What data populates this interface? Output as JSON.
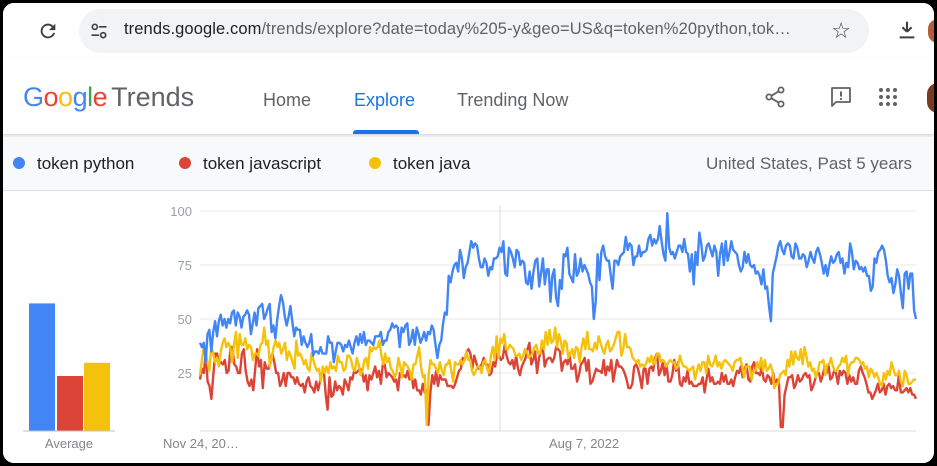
{
  "browser": {
    "url_host": "trends.google.com",
    "url_path": "/trends/explore?date=today%205-y&geo=US&q=token%20python,tok…",
    "icons": [
      "reload-icon",
      "site-settings-icon",
      "bookmark-star-icon",
      "download-icon"
    ]
  },
  "header": {
    "logo_google": [
      "G",
      "o",
      "o",
      "g",
      "l",
      "e"
    ],
    "logo_colors": [
      "#4285F4",
      "#EA4335",
      "#FBBC05",
      "#4285F4",
      "#34A853",
      "#EA4335"
    ],
    "logo_trends": "Trends",
    "nav": [
      "Home",
      "Explore",
      "Trending Now"
    ],
    "active_tab": "Explore",
    "icons": [
      "share-icon",
      "feedback-icon",
      "apps-grid-icon"
    ]
  },
  "legend": {
    "items": [
      {
        "label": "token python",
        "color": "#4285F4"
      },
      {
        "label": "token javascript",
        "color": "#DB4437"
      },
      {
        "label": "token java",
        "color": "#F4C20D"
      }
    ],
    "region": "United States, Past 5 years"
  },
  "chart_data": {
    "type": "line",
    "y_ticks": [
      "100",
      "75",
      "50",
      "25"
    ],
    "ylim": [
      0,
      100
    ],
    "x_tick_labels": [
      "Nov 24, 20…",
      "Aug 7, 2022"
    ],
    "bar_label": "Average",
    "averages": [
      58,
      25,
      31
    ],
    "grid": true,
    "series": [
      {
        "name": "token python",
        "color": "#4285F4",
        "values": [
          39,
          37,
          39,
          30,
          43,
          45,
          35,
          44,
          49,
          42,
          49,
          52,
          47,
          50,
          46,
          50,
          48,
          53,
          54,
          47,
          53,
          51,
          46,
          51,
          52,
          54,
          52,
          43,
          48,
          53,
          47,
          55,
          56,
          57,
          50,
          52,
          55,
          57,
          44,
          47,
          41,
          50,
          56,
          61,
          58,
          51,
          47,
          51,
          56,
          49,
          42,
          46,
          45,
          45,
          38,
          42,
          39,
          37,
          39,
          43,
          33,
          35,
          35,
          34,
          37,
          34,
          34,
          34,
          42,
          39,
          39,
          30,
          35,
          39,
          39,
          38,
          35,
          38,
          37,
          40,
          37,
          34,
          39,
          42,
          38,
          43,
          39,
          44,
          38,
          40,
          40,
          39,
          38,
          42,
          42,
          42,
          44,
          38,
          40,
          40,
          44,
          45,
          48,
          46,
          47,
          46,
          37,
          46,
          44,
          47,
          48,
          38,
          40,
          45,
          38,
          46,
          43,
          39,
          41,
          44,
          40,
          44,
          43,
          47,
          45,
          38,
          32,
          38,
          40,
          48,
          53,
          52,
          70,
          67,
          72,
          75,
          76,
          72,
          82,
          78,
          69,
          74,
          76,
          81,
          86,
          83,
          85,
          84,
          78,
          74,
          74,
          78,
          76,
          70,
          74,
          73,
          78,
          78,
          79,
          83,
          81,
          86,
          71,
          70,
          83,
          81,
          78,
          74,
          82,
          81,
          75,
          77,
          76,
          67,
          66,
          72,
          64,
          72,
          77,
          78,
          65,
          71,
          78,
          66,
          73,
          73,
          58,
          70,
          73,
          60,
          56,
          68,
          64,
          80,
          79,
          83,
          71,
          69,
          67,
          80,
          70,
          72,
          78,
          72,
          75,
          73,
          71,
          67,
          65,
          50,
          58,
          80,
          68,
          81,
          84,
          79,
          77,
          77,
          70,
          64,
          77,
          77,
          75,
          79,
          80,
          81,
          88,
          82,
          85,
          84,
          75,
          79,
          79,
          84,
          79,
          81,
          81,
          82,
          87,
          89,
          84,
          87,
          85,
          87,
          93,
          86,
          80,
          77,
          99,
          83,
          80,
          81,
          78,
          81,
          84,
          84,
          81,
          87,
          81,
          80,
          72,
          80,
          66,
          81,
          75,
          90,
          85,
          77,
          79,
          84,
          85,
          82,
          79,
          84,
          81,
          70,
          80,
          85,
          75,
          86,
          77,
          81,
          86,
          82,
          81,
          80,
          75,
          72,
          74,
          81,
          76,
          80,
          75,
          74,
          75,
          71,
          72,
          70,
          66,
          73,
          64,
          65,
          56,
          49,
          71,
          75,
          79,
          84,
          86,
          82,
          80,
          84,
          85,
          84,
          79,
          78,
          85,
          83,
          78,
          78,
          80,
          79,
          74,
          77,
          81,
          78,
          76,
          81,
          83,
          80,
          76,
          71,
          75,
          70,
          75,
          79,
          76,
          77,
          80,
          81,
          76,
          78,
          71,
          76,
          74,
          85,
          81,
          73,
          77,
          76,
          73,
          74,
          72,
          74,
          70,
          70,
          63,
          65,
          78,
          76,
          81,
          82,
          84,
          82,
          77,
          70,
          67,
          69,
          62,
          66,
          73,
          70,
          62,
          55,
          71,
          72,
          64,
          71,
          71,
          54,
          50
        ]
      },
      {
        "name": "token javascript",
        "color": "#DB4437",
        "values": [
          22,
          27,
          25,
          34,
          21,
          19,
          13,
          24,
          34,
          34,
          29,
          30,
          29,
          31,
          25,
          26,
          37,
          37,
          29,
          28,
          25,
          25,
          34,
          36,
          26,
          21,
          19,
          22,
          17,
          27,
          36,
          28,
          31,
          18,
          30,
          27,
          27,
          31,
          34,
          30,
          25,
          25,
          19,
          21,
          25,
          19,
          25,
          25,
          23,
          23,
          20,
          23,
          20,
          19,
          20,
          16,
          21,
          23,
          19,
          18,
          16,
          21,
          17,
          21,
          25,
          26,
          15,
          8,
          23,
          14,
          15,
          21,
          17,
          19,
          18,
          15,
          22,
          20,
          17,
          23,
          22,
          26,
          25,
          26,
          27,
          26,
          21,
          24,
          17,
          24,
          22,
          25,
          28,
          23,
          26,
          20,
          29,
          29,
          23,
          25,
          24,
          23,
          21,
          22,
          17,
          25,
          24,
          24,
          23,
          26,
          22,
          25,
          18,
          22,
          17,
          17,
          15,
          20,
          16,
          17,
          1,
          16,
          24,
          20,
          26,
          19,
          24,
          22,
          22,
          22,
          19,
          19,
          19,
          18,
          20,
          23,
          26,
          27,
          32,
          31,
          35,
          36,
          34,
          27,
          33,
          30,
          27,
          28,
          29,
          32,
          29,
          29,
          24,
          25,
          30,
          28,
          34,
          33,
          31,
          32,
          38,
          33,
          30,
          29,
          31,
          27,
          33,
          27,
          24,
          28,
          30,
          32,
          36,
          39,
          29,
          31,
          35,
          25,
          32,
          35,
          37,
          28,
          31,
          32,
          32,
          30,
          32,
          37,
          36,
          35,
          26,
          30,
          31,
          29,
          34,
          27,
          27,
          29,
          21,
          24,
          29,
          30,
          32,
          26,
          31,
          20,
          21,
          24,
          27,
          26,
          26,
          25,
          31,
          24,
          28,
          26,
          31,
          21,
          26,
          31,
          28,
          28,
          27,
          25,
          22,
          18,
          18,
          20,
          28,
          29,
          27,
          23,
          18,
          27,
          27,
          20,
          27,
          28,
          26,
          32,
          34,
          24,
          26,
          30,
          24,
          29,
          21,
          21,
          24,
          31,
          26,
          30,
          20,
          19,
          23,
          21,
          26,
          20,
          21,
          19,
          19,
          19,
          20,
          20,
          23,
          16,
          22,
          27,
          21,
          23,
          20,
          20,
          21,
          20,
          25,
          21,
          24,
          20,
          20,
          22,
          19,
          23,
          26,
          25,
          28,
          23,
          27,
          29,
          22,
          21,
          28,
          30,
          25,
          25,
          24,
          28,
          22,
          21,
          24,
          23,
          20,
          25,
          19,
          22,
          21,
          0,
          0,
          15,
          19,
          23,
          23,
          24,
          18,
          20,
          24,
          21,
          22,
          24,
          25,
          23,
          24,
          17,
          19,
          22,
          25,
          25,
          21,
          24,
          28,
          25,
          29,
          22,
          23,
          26,
          25,
          20,
          26,
          24,
          26,
          25,
          20,
          24,
          21,
          23,
          20,
          20,
          26,
          28,
          25,
          23,
          20,
          16,
          16,
          13,
          15,
          17,
          20,
          16,
          17,
          20,
          15,
          19,
          20,
          18,
          19,
          17,
          17,
          24,
          16,
          16,
          17,
          18,
          16,
          18,
          15,
          15,
          13
        ]
      },
      {
        "name": "token java",
        "color": "#F4C20D",
        "values": [
          24,
          31,
          37,
          34,
          30,
          26,
          37,
          34,
          30,
          32,
          28,
          35,
          39,
          41,
          37,
          39,
          37,
          30,
          38,
          44,
          32,
          43,
          38,
          38,
          41,
          36,
          38,
          37,
          31,
          34,
          34,
          33,
          38,
          39,
          46,
          38,
          40,
          28,
          32,
          37,
          40,
          37,
          39,
          34,
          36,
          39,
          31,
          35,
          33,
          30,
          27,
          40,
          33,
          34,
          32,
          29,
          31,
          27,
          26,
          34,
          31,
          28,
          26,
          27,
          21,
          28,
          25,
          28,
          25,
          30,
          27,
          28,
          26,
          33,
          30,
          30,
          26,
          27,
          33,
          33,
          31,
          27,
          26,
          32,
          29,
          24,
          26,
          31,
          32,
          27,
          37,
          35,
          37,
          36,
          37,
          40,
          33,
          29,
          34,
          30,
          32,
          27,
          26,
          23,
          25,
          32,
          28,
          23,
          30,
          29,
          28,
          26,
          22,
          29,
          29,
          33,
          37,
          28,
          23,
          24,
          1,
          24,
          31,
          29,
          29,
          27,
          25,
          30,
          26,
          24,
          29,
          29,
          31,
          26,
          21,
          30,
          29,
          29,
          31,
          29,
          31,
          35,
          31,
          31,
          26,
          24,
          26,
          28,
          28,
          25,
          30,
          31,
          27,
          25,
          33,
          37,
          31,
          42,
          32,
          41,
          39,
          43,
          36,
          36,
          38,
          37,
          36,
          33,
          33,
          34,
          31,
          33,
          36,
          35,
          32,
          33,
          34,
          37,
          38,
          34,
          34,
          40,
          36,
          44,
          38,
          45,
          39,
          40,
          46,
          37,
          43,
          40,
          34,
          40,
          39,
          32,
          34,
          36,
          32,
          37,
          36,
          30,
          37,
          41,
          36,
          44,
          36,
          36,
          35,
          39,
          36,
          42,
          39,
          36,
          34,
          38,
          40,
          35,
          36,
          38,
          41,
          44,
          44,
          33,
          36,
          43,
          37,
          37,
          36,
          32,
          31,
          30,
          31,
          28,
          29,
          28,
          29,
          32,
          30,
          33,
          29,
          31,
          34,
          34,
          30,
          31,
          30,
          28,
          30,
          31,
          30,
          30,
          27,
          28,
          33,
          30,
          28,
          28,
          27,
          26,
          27,
          28,
          22,
          26,
          29,
          26,
          30,
          30,
          25,
          33,
          29,
          28,
          30,
          33,
          28,
          30,
          27,
          30,
          31,
          30,
          29,
          28,
          26,
          30,
          31,
          31,
          32,
          28,
          23,
          28,
          28,
          28,
          22,
          26,
          26,
          30,
          27,
          32,
          26,
          31,
          26,
          27,
          29,
          26,
          18,
          20,
          20,
          24,
          25,
          26,
          24,
          31,
          28,
          35,
          29,
          35,
          32,
          31,
          36,
          29,
          37,
          33,
          28,
          30,
          26,
          27,
          23,
          26,
          30,
          30,
          31,
          24,
          29,
          29,
          32,
          28,
          26,
          26,
          28,
          29,
          32,
          30,
          33,
          24,
          29,
          30,
          30,
          32,
          32,
          31,
          29,
          30,
          27,
          28,
          23,
          27,
          26,
          23,
          25,
          23,
          20,
          19,
          25,
          22,
          26,
          24,
          30,
          27,
          24,
          24,
          26,
          21,
          19,
          26,
          24,
          20,
          20,
          21,
          22,
          22
        ]
      }
    ]
  }
}
